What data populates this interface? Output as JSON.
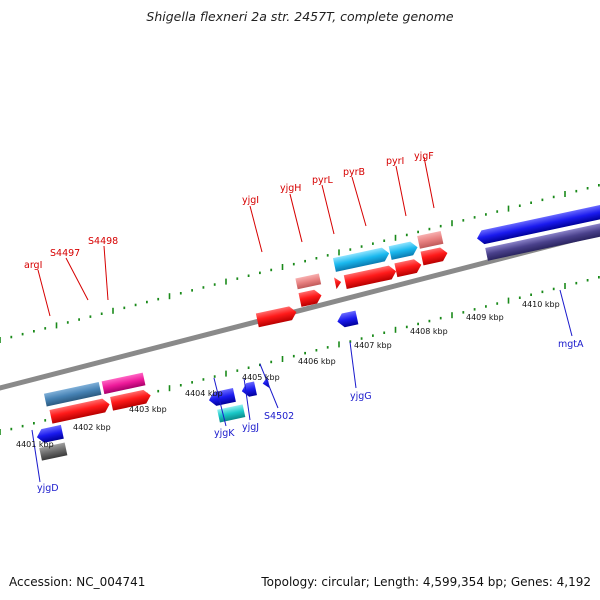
{
  "title": "Shigella flexneri 2a str. 2457T, complete genome",
  "footer": {
    "accession": "Accession: NC_004741",
    "summary": "Topology: circular; Length: 4,599,354 bp; Genes: 4,192"
  },
  "scale_labels": [
    "4401 kbp",
    "4402 kbp",
    "4403 kbp",
    "4404 kbp",
    "4405 kbp",
    "4406 kbp",
    "4407 kbp",
    "4408 kbp",
    "4409 kbp",
    "4410 kbp"
  ],
  "colors": {
    "genome_line": "#888888",
    "tick": "#1a8a1a",
    "forward_label": "#d60000",
    "reverse_label": "#1a1acc"
  },
  "gene_labels_top": [
    "argI",
    "S4497",
    "S4498",
    "yjgI",
    "yjgH",
    "pyrL",
    "pyrB",
    "pyrI",
    "yjgF"
  ],
  "gene_labels_bottom": [
    "yjgD",
    "yjgK",
    "yjgJ",
    "S4502",
    "yjgG",
    "mgtA"
  ]
}
